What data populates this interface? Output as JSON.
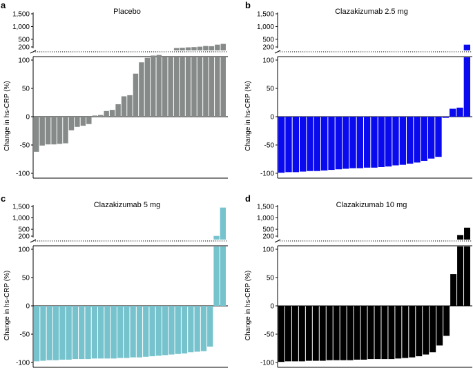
{
  "figure": {
    "panels_order": [
      "a",
      "b",
      "c",
      "d"
    ]
  },
  "chart_data": [
    {
      "type": "bar",
      "panel_label": "a",
      "title": "Placebo",
      "ylabel": "Change in hs-CRP (%)",
      "color": "#868a89",
      "ylim_lower": [
        -100,
        110
      ],
      "ylim_upper": [
        0,
        1500
      ],
      "upper_tick_labels": [
        "1,500",
        "1,000",
        "500",
        "200"
      ],
      "upper_ticks": [
        1500,
        1000,
        500,
        200
      ],
      "lower_tick_labels": [
        "100",
        "50",
        "0",
        "-50",
        "-100"
      ],
      "lower_ticks": [
        100,
        50,
        0,
        -50,
        -100
      ],
      "values": [
        -62,
        -51,
        -49,
        -49,
        -48,
        -47,
        -24,
        -18,
        -16,
        -13,
        2,
        3,
        10,
        12,
        22,
        36,
        38,
        76,
        96,
        104,
        108,
        109,
        110,
        110,
        110,
        110,
        110,
        110,
        110,
        110,
        110,
        110,
        110
      ],
      "upper_values": [
        null,
        null,
        null,
        null,
        null,
        null,
        null,
        null,
        null,
        null,
        null,
        null,
        null,
        null,
        null,
        null,
        null,
        null,
        null,
        null,
        null,
        null,
        null,
        null,
        20,
        40,
        70,
        90,
        120,
        170,
        230,
        290,
        320
      ]
    },
    {
      "type": "bar",
      "panel_label": "b",
      "title": "Clazakizumab 2.5 mg",
      "ylabel": "Change in hs-CRP (%)",
      "color": "#0a0aee",
      "ylim_lower": [
        -100,
        110
      ],
      "ylim_upper": [
        0,
        1500
      ],
      "upper_tick_labels": [
        "1,500",
        "1,000",
        "500",
        "200"
      ],
      "upper_ticks": [
        1500,
        1000,
        500,
        200
      ],
      "lower_tick_labels": [
        "100",
        "50",
        "0",
        "-50",
        "-100"
      ],
      "lower_ticks": [
        100,
        50,
        0,
        -50,
        -100
      ],
      "values": [
        -99,
        -98,
        -98,
        -97,
        -96,
        -96,
        -95,
        -94,
        -93,
        -92,
        -91,
        -91,
        -90,
        -90,
        -89,
        -88,
        -86,
        -85,
        -83,
        -81,
        -78,
        -74,
        -71,
        -2,
        14,
        16,
        110
      ],
      "upper_values": [
        null,
        null,
        null,
        null,
        null,
        null,
        null,
        null,
        null,
        null,
        null,
        null,
        null,
        null,
        null,
        null,
        null,
        null,
        null,
        null,
        null,
        null,
        null,
        null,
        null,
        null,
        290
      ]
    },
    {
      "type": "bar",
      "panel_label": "c",
      "title": "Clazakizumab 5 mg",
      "ylabel": "Change in hs-CRP (%)",
      "color": "#76c3cd",
      "ylim_lower": [
        -100,
        110
      ],
      "ylim_upper": [
        0,
        1500
      ],
      "upper_tick_labels": [
        "1,500",
        "1,000",
        "500",
        "200"
      ],
      "upper_ticks": [
        1500,
        1000,
        500,
        200
      ],
      "lower_tick_labels": [
        "100",
        "50",
        "0",
        "-50",
        "-100"
      ],
      "lower_ticks": [
        100,
        50,
        0,
        -50,
        -100
      ],
      "values": [
        -98,
        -97,
        -96,
        -96,
        -95,
        -95,
        -94,
        -94,
        -94,
        -93,
        -93,
        -93,
        -93,
        -92,
        -92,
        -91,
        -91,
        -90,
        -89,
        -88,
        -87,
        -86,
        -85,
        -84,
        -82,
        -81,
        -80,
        -72,
        110,
        110
      ],
      "upper_values": [
        null,
        null,
        null,
        null,
        null,
        null,
        null,
        null,
        null,
        null,
        null,
        null,
        null,
        null,
        null,
        null,
        null,
        null,
        null,
        null,
        null,
        null,
        null,
        null,
        null,
        null,
        null,
        null,
        210,
        1450
      ]
    },
    {
      "type": "bar",
      "panel_label": "d",
      "title": "Clazakizumab 10 mg",
      "ylabel": "Change in hs-CRP (%)",
      "color": "#000000",
      "ylim_lower": [
        -100,
        110
      ],
      "ylim_upper": [
        0,
        1500
      ],
      "upper_tick_labels": [
        "1,500",
        "1,000",
        "500",
        "200"
      ],
      "upper_ticks": [
        1500,
        1000,
        500,
        200
      ],
      "lower_tick_labels": [
        "100",
        "50",
        "0",
        "-50",
        "-100"
      ],
      "lower_ticks": [
        100,
        50,
        0,
        -50,
        -100
      ],
      "values": [
        -99,
        -98,
        -98,
        -98,
        -97,
        -97,
        -97,
        -96,
        -96,
        -96,
        -96,
        -95,
        -95,
        -94,
        -94,
        -94,
        -94,
        -93,
        -92,
        -91,
        -89,
        -86,
        -82,
        -70,
        -53,
        56,
        110,
        110
      ],
      "upper_values": [
        null,
        null,
        null,
        null,
        null,
        null,
        null,
        null,
        null,
        null,
        null,
        null,
        null,
        null,
        null,
        null,
        null,
        null,
        null,
        null,
        null,
        null,
        null,
        null,
        null,
        null,
        180,
        570
      ]
    }
  ]
}
